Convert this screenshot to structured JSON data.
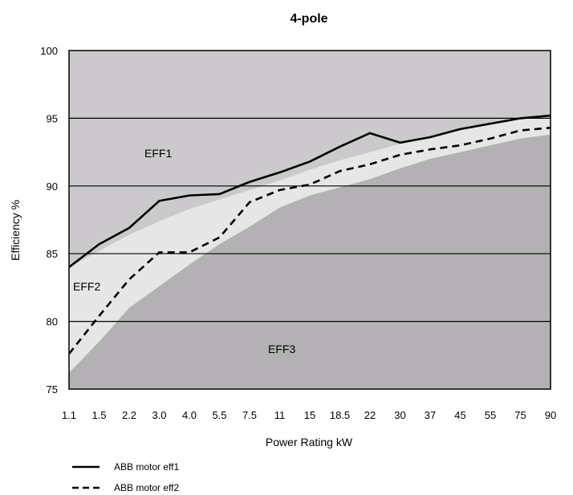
{
  "chart_data": {
    "type": "line",
    "title": "4-pole",
    "xlabel": "Power Rating kW",
    "ylabel": "Efficiency %",
    "categories": [
      "1.1",
      "1.5",
      "2.2",
      "3.0",
      "4.0",
      "5.5",
      "7.5",
      "11",
      "15",
      "18.5",
      "22",
      "30",
      "37",
      "45",
      "55",
      "75",
      "90"
    ],
    "ylim": [
      75,
      100
    ],
    "yticks": [
      75,
      80,
      85,
      90,
      95,
      100
    ],
    "grid": "horizontal",
    "series": [
      {
        "name": "ABB motor eff1",
        "style": "solid",
        "values": [
          84.0,
          85.7,
          86.9,
          88.9,
          89.3,
          89.4,
          90.3,
          91.0,
          91.8,
          92.9,
          93.9,
          93.2,
          93.6,
          94.2,
          94.6,
          95.0,
          95.2
        ]
      },
      {
        "name": "ABB motor eff2",
        "style": "dashed",
        "values": [
          77.6,
          80.4,
          83.1,
          85.1,
          85.1,
          86.2,
          88.8,
          89.7,
          90.1,
          91.1,
          91.6,
          92.3,
          92.7,
          93.0,
          93.5,
          94.1,
          94.3
        ]
      }
    ],
    "regions": [
      {
        "name": "EFF1",
        "color": "#cbc9cc",
        "lower_bound": [
          84.0,
          85.2,
          86.4,
          87.4,
          88.3,
          89.0,
          89.7,
          90.4,
          91.2,
          91.9,
          92.5,
          93.1,
          93.6,
          94.1,
          94.5,
          94.9,
          95.2
        ]
      },
      {
        "name": "EFF2",
        "color": "#e6e6e6",
        "lower_bound": [
          76.2,
          78.5,
          81.0,
          82.6,
          84.2,
          85.7,
          87.0,
          88.4,
          89.3,
          89.9,
          90.5,
          91.3,
          92.0,
          92.5,
          93.0,
          93.5,
          93.8
        ]
      },
      {
        "name": "EFF3",
        "color": "#b3b1b3"
      }
    ],
    "legend": {
      "position": "bottom-left"
    }
  },
  "labels": {
    "eff1": "EFF1",
    "eff2": "EFF2",
    "eff3": "EFF3"
  }
}
